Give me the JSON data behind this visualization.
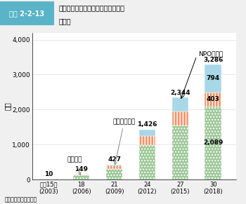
{
  "categories": [
    "平成15年\n(2003)",
    "18\n(2006)",
    "21\n(2009)",
    "24\n(2012)",
    "27\n(2015)",
    "30\n(2018)"
  ],
  "seg_kabushiki": [
    10,
    120,
    300,
    980,
    1550,
    2089
  ],
  "seg_tokurei": [
    0,
    22,
    97,
    256,
    390,
    403
  ],
  "seg_mid": [
    0,
    7,
    30,
    190,
    404,
    794
  ],
  "totals": [
    10,
    149,
    427,
    1426,
    2344,
    3286
  ],
  "color_kabushiki": "#9dc898",
  "color_tokurei": "#f0956a",
  "color_mid": "#a8d8e8",
  "header_bg": "#5ab4c8",
  "header_label": "図表 2-2-13",
  "title_line1": "農地を利用して農業経営を行う一般",
  "title_line2": "法人数",
  "ylabel": "法人",
  "anno_kabushiki": "株式会社",
  "anno_tokurei": "特例有限会社",
  "npo_label": "NPO法人等",
  "source": "資料：農林水産省作成",
  "label_2089": "2,089",
  "label_403": "403",
  "label_794": "794",
  "label_3286": "3,286",
  "ymax": 4200,
  "yticks": [
    0,
    1000,
    2000,
    3000,
    4000
  ]
}
